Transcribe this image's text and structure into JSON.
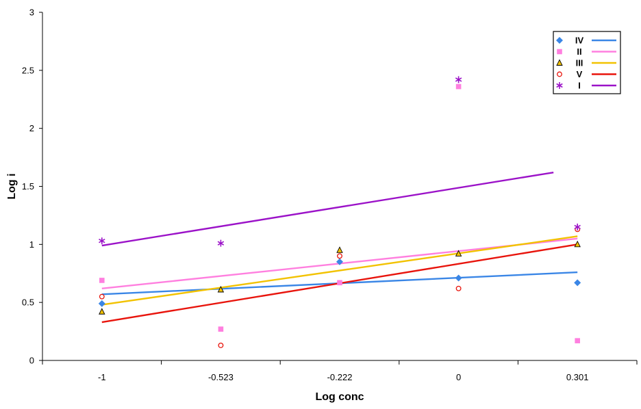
{
  "chart_data": {
    "type": "scatter",
    "title": "",
    "xlabel": "Log conc",
    "ylabel": "Log i",
    "x_tick_labels": [
      "-1",
      "-0.523",
      "-0.222",
      "0",
      "0.301"
    ],
    "y_tick_labels": [
      "0",
      "0.5",
      "1",
      "1.5",
      "2",
      "2.5",
      "3"
    ],
    "y_ticks": [
      0,
      0.5,
      1,
      1.5,
      2,
      2.5,
      3
    ],
    "ylim": [
      0,
      3
    ],
    "x_axis_style": "categorical",
    "grid": false,
    "legend_position": "top-right",
    "series": [
      {
        "name": "IV",
        "color": "#3A86E6",
        "marker": "diamond",
        "points": [
          0.49,
          null,
          0.85,
          0.71,
          0.67
        ],
        "trendline": [
          0.57,
          0.76
        ]
      },
      {
        "name": "II",
        "color": "#FF7FDF",
        "marker": "square",
        "points": [
          0.69,
          0.27,
          0.67,
          2.36,
          0.17
        ],
        "trendline": [
          0.62,
          1.05
        ]
      },
      {
        "name": "III",
        "color": "#F2C200",
        "marker": "triangle",
        "points": [
          0.42,
          0.61,
          0.95,
          0.92,
          1.0
        ],
        "trendline": [
          0.48,
          1.07
        ]
      },
      {
        "name": "V",
        "color": "#E8140C",
        "marker": "circle",
        "points": [
          0.55,
          0.13,
          0.9,
          0.62,
          1.13
        ],
        "trendline": [
          0.33,
          1.0
        ]
      },
      {
        "name": "I",
        "color": "#9B12C8",
        "marker": "asterisk",
        "points": [
          1.03,
          1.01,
          null,
          2.42,
          1.15
        ],
        "trendline": [
          0.99,
          1.62
        ]
      }
    ]
  }
}
